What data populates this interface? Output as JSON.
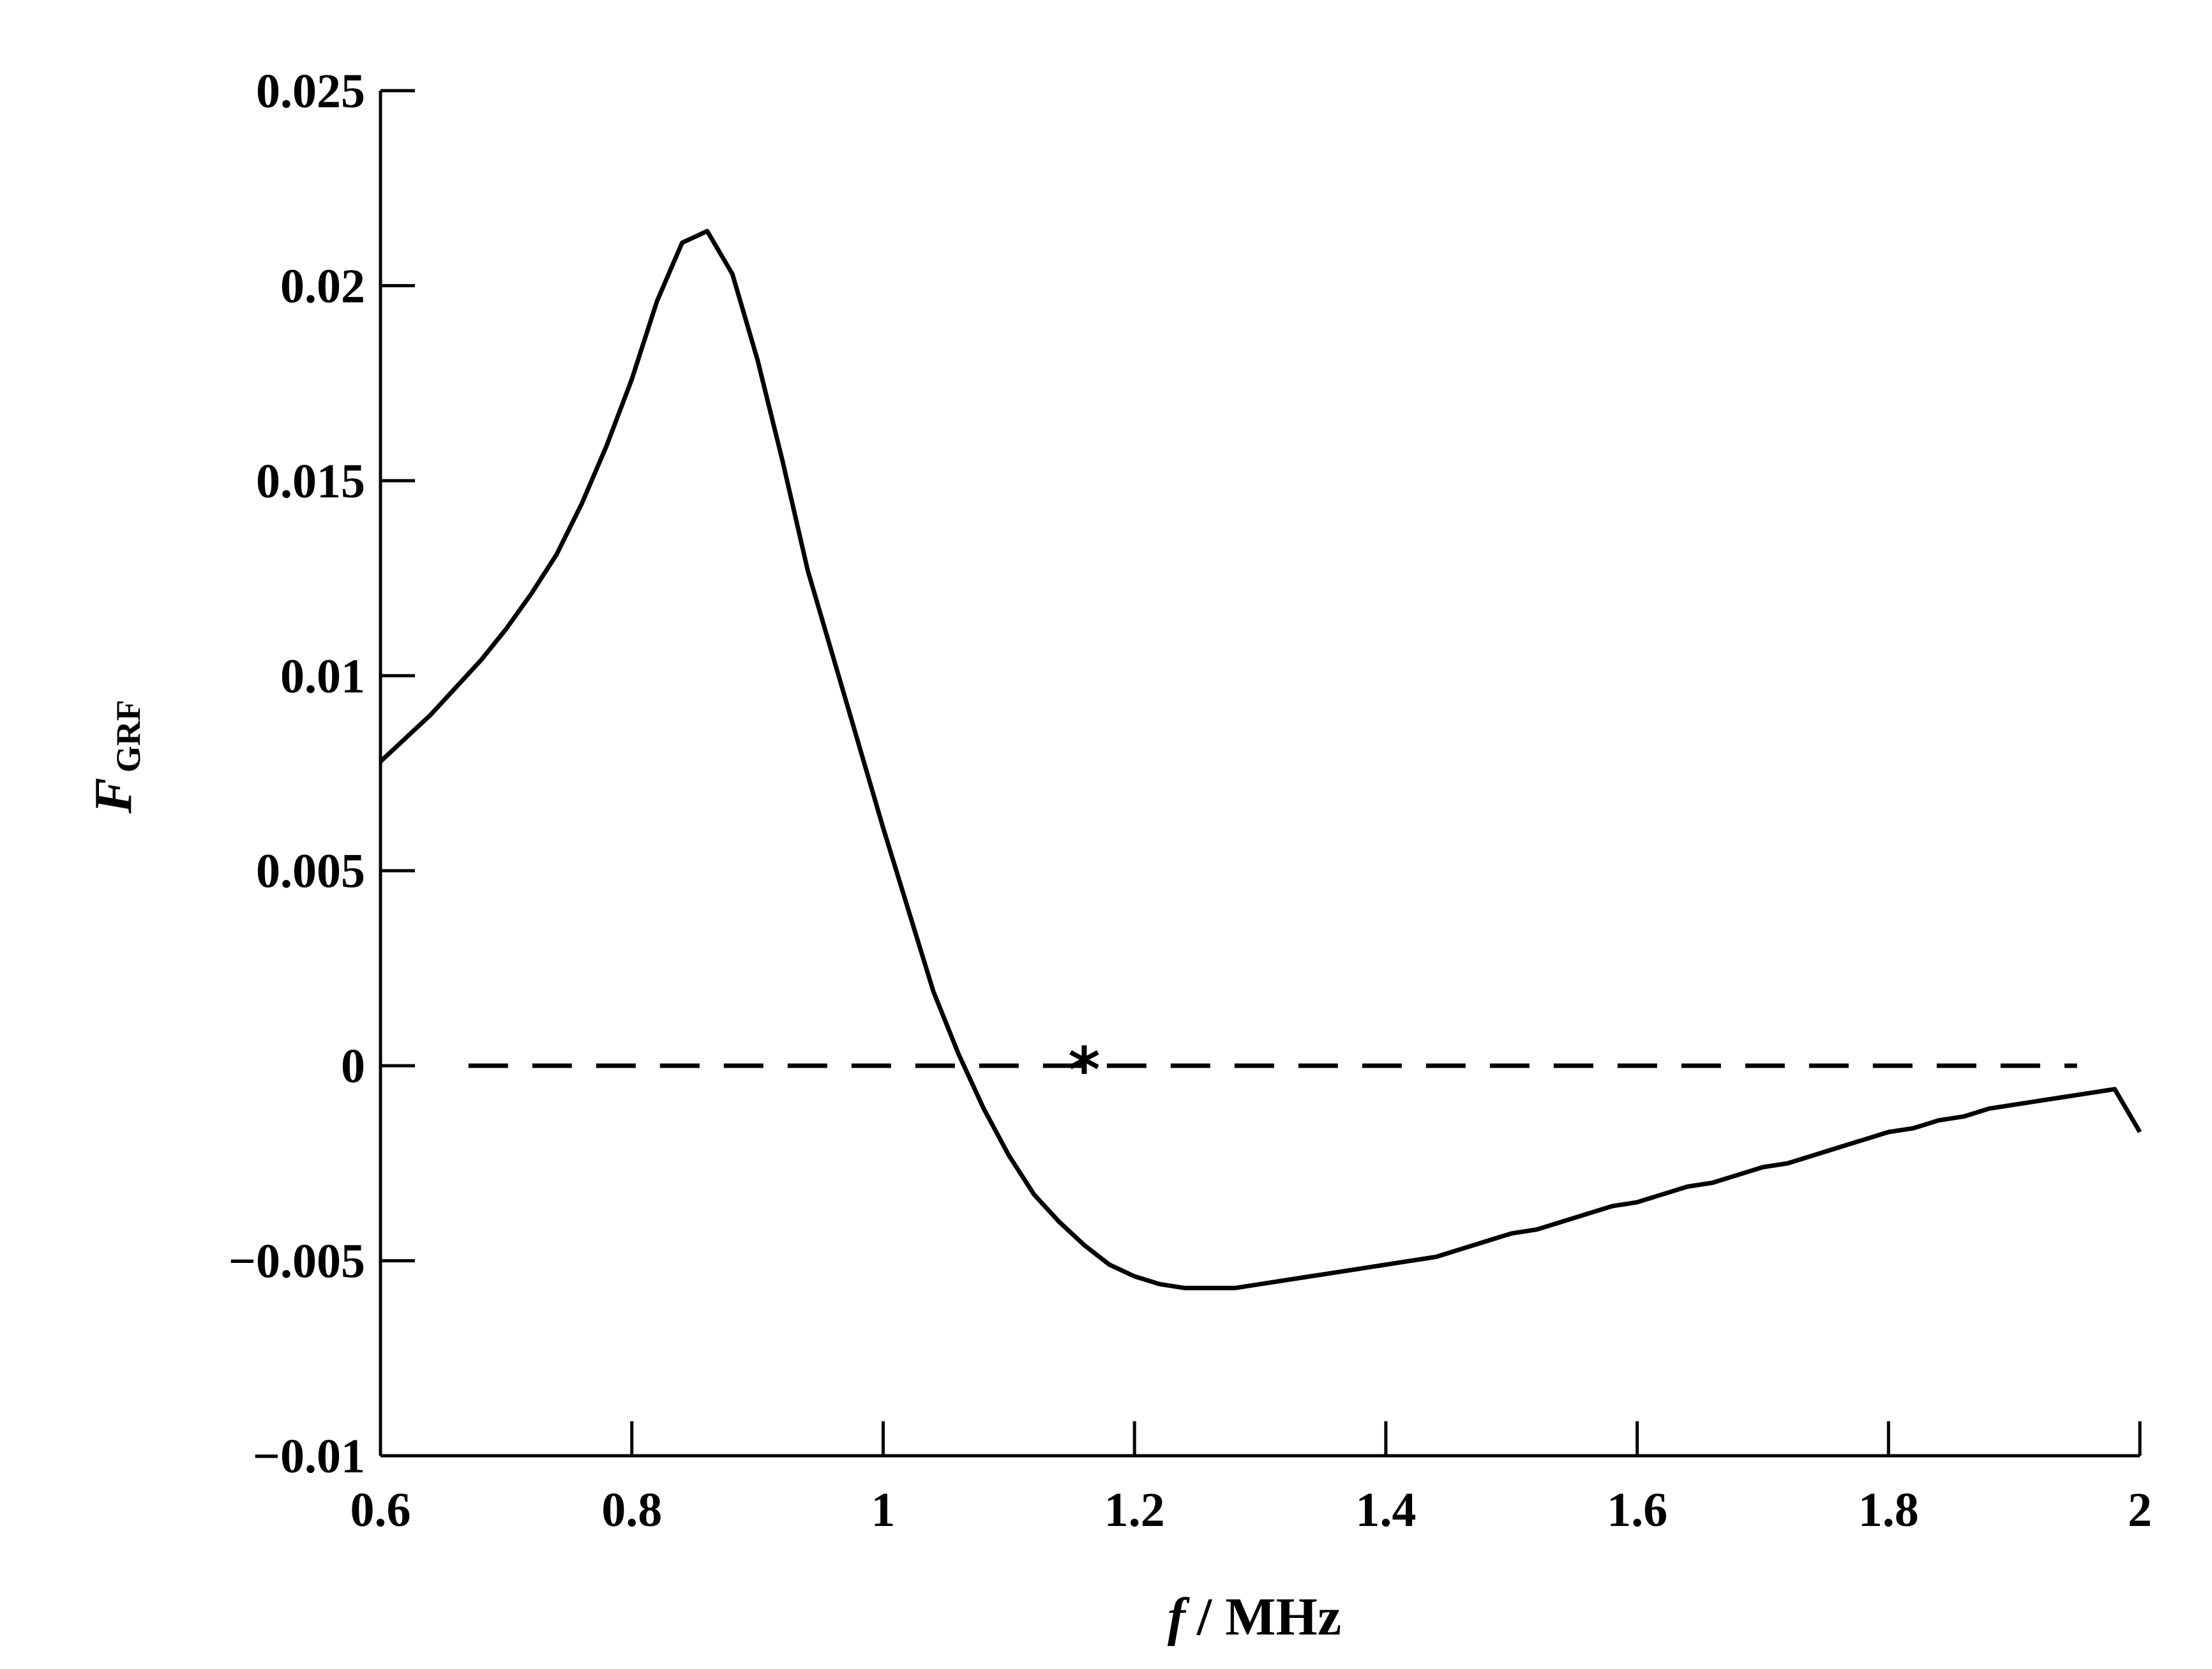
{
  "chart_data": {
    "type": "line",
    "title": "",
    "xlabel": {
      "symbol": "f",
      "unit": "/ MHz"
    },
    "ylabel": {
      "symbol": "F",
      "subscript": "GRF"
    },
    "xlim": [
      0.6,
      2.0
    ],
    "ylim": [
      -0.01,
      0.025
    ],
    "x_ticks": [
      0.6,
      0.8,
      1.0,
      1.2,
      1.4,
      1.6,
      1.8,
      2.0
    ],
    "x_tick_labels": [
      "0.6",
      "0.8",
      "1",
      "1.2",
      "1.4",
      "1.6",
      "1.8",
      "2"
    ],
    "y_ticks": [
      -0.01,
      -0.005,
      0,
      0.005,
      0.01,
      0.015,
      0.02,
      0.025
    ],
    "y_tick_labels": [
      "−0.01",
      "−0.005",
      "0",
      "0.005",
      "0.01",
      "0.015",
      "0.02",
      "0.025"
    ],
    "grid": false,
    "legend": "none",
    "line_color": "#000000",
    "series": [
      {
        "style": "solid",
        "x": [
          0.6,
          0.62,
          0.64,
          0.66,
          0.68,
          0.7,
          0.72,
          0.74,
          0.76,
          0.78,
          0.8,
          0.82,
          0.84,
          0.86,
          0.88,
          0.9,
          0.92,
          0.94,
          0.96,
          0.98,
          1.0,
          1.02,
          1.04,
          1.06,
          1.08,
          1.1,
          1.12,
          1.14,
          1.16,
          1.18,
          1.2,
          1.22,
          1.24,
          1.26,
          1.28,
          1.3,
          1.32,
          1.34,
          1.36,
          1.38,
          1.4,
          1.42,
          1.44,
          1.46,
          1.48,
          1.5,
          1.52,
          1.54,
          1.56,
          1.58,
          1.6,
          1.62,
          1.64,
          1.66,
          1.68,
          1.7,
          1.72,
          1.74,
          1.76,
          1.78,
          1.8,
          1.82,
          1.84,
          1.86,
          1.88,
          1.9,
          1.92,
          1.94,
          1.96,
          1.98,
          2.0
        ],
        "y": [
          0.0078,
          0.0084,
          0.009,
          0.0097,
          0.0104,
          0.0112,
          0.0121,
          0.0131,
          0.0144,
          0.0159,
          0.0176,
          0.0196,
          0.0211,
          0.0214,
          0.0203,
          0.0181,
          0.0155,
          0.0127,
          0.0105,
          0.0083,
          0.0061,
          0.004,
          0.0019,
          0.0003,
          -0.0011,
          -0.0023,
          -0.0033,
          -0.004,
          -0.0046,
          -0.0051,
          -0.0054,
          -0.0056,
          -0.0057,
          -0.0057,
          -0.0057,
          -0.0056,
          -0.0055,
          -0.0054,
          -0.0053,
          -0.0052,
          -0.0051,
          -0.005,
          -0.0049,
          -0.0047,
          -0.0045,
          -0.0043,
          -0.0042,
          -0.004,
          -0.0038,
          -0.0036,
          -0.0035,
          -0.0033,
          -0.0031,
          -0.003,
          -0.0028,
          -0.0026,
          -0.0025,
          -0.0023,
          -0.0021,
          -0.0019,
          -0.0017,
          -0.0016,
          -0.0014,
          -0.0013,
          -0.0011,
          -0.001,
          -0.0009,
          -0.0008,
          -0.0007,
          -0.0006,
          -0.0017
        ]
      },
      {
        "style": "dashed",
        "x": [
          0.67,
          1.95
        ],
        "y": [
          0,
          0
        ]
      }
    ],
    "annotations": [
      {
        "type": "marker",
        "symbol": "*",
        "x": 1.16,
        "y": 0
      }
    ]
  }
}
